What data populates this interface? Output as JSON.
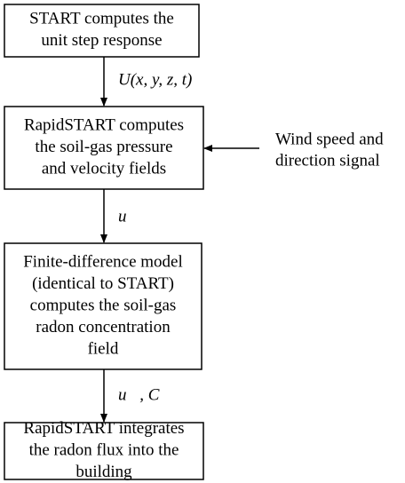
{
  "nodes": [
    {
      "lines": [
        "START computes the",
        "unit step response"
      ]
    },
    {
      "lines": [
        "RapidSTART computes",
        "the soil-gas pressure",
        "and velocity fields"
      ]
    },
    {
      "lines": [
        "Finite-difference model",
        "(identical to START)",
        "computes the soil-gas",
        "radon concentration",
        "field"
      ]
    },
    {
      "lines": [
        "RapidSTART integrates",
        "the radon flux into the",
        "building"
      ]
    }
  ],
  "input": {
    "lines": [
      "Wind speed and",
      "direction signal"
    ]
  },
  "edges": [
    {
      "label": "U(x, y, z, t)"
    },
    {
      "label": "u⃗"
    },
    {
      "label": "u⃗, C"
    }
  ]
}
